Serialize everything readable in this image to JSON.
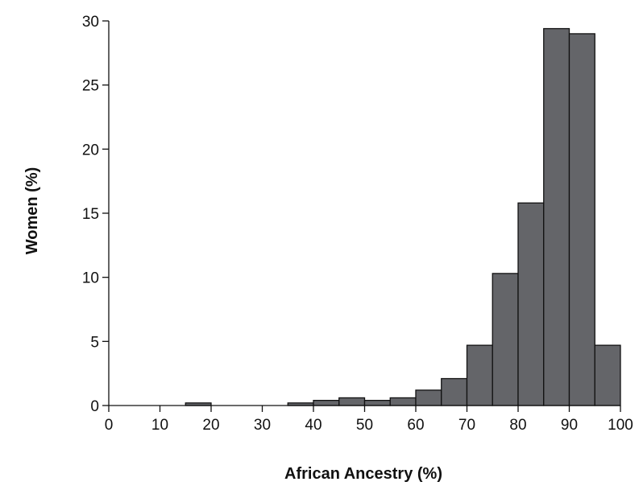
{
  "chart_data": {
    "type": "bar",
    "xlabel": "African Ancestry (%)",
    "ylabel": "Women (%)",
    "xlim": [
      0,
      100
    ],
    "ylim": [
      0,
      30
    ],
    "xticks": [
      0,
      10,
      20,
      30,
      40,
      50,
      60,
      70,
      80,
      90,
      100
    ],
    "yticks": [
      0,
      5,
      10,
      15,
      20,
      25,
      30
    ],
    "bin_width": 5,
    "bins": [
      {
        "start": 0,
        "end": 5,
        "value": 0
      },
      {
        "start": 5,
        "end": 10,
        "value": 0
      },
      {
        "start": 10,
        "end": 15,
        "value": 0
      },
      {
        "start": 15,
        "end": 20,
        "value": 0.2
      },
      {
        "start": 20,
        "end": 25,
        "value": 0
      },
      {
        "start": 25,
        "end": 30,
        "value": 0
      },
      {
        "start": 30,
        "end": 35,
        "value": 0
      },
      {
        "start": 35,
        "end": 40,
        "value": 0.2
      },
      {
        "start": 40,
        "end": 45,
        "value": 0.4
      },
      {
        "start": 45,
        "end": 50,
        "value": 0.6
      },
      {
        "start": 50,
        "end": 55,
        "value": 0.4
      },
      {
        "start": 55,
        "end": 60,
        "value": 0.6
      },
      {
        "start": 60,
        "end": 65,
        "value": 1.2
      },
      {
        "start": 65,
        "end": 70,
        "value": 2.1
      },
      {
        "start": 70,
        "end": 75,
        "value": 4.7
      },
      {
        "start": 75,
        "end": 80,
        "value": 10.3
      },
      {
        "start": 80,
        "end": 85,
        "value": 15.8
      },
      {
        "start": 85,
        "end": 90,
        "value": 29.4
      },
      {
        "start": 90,
        "end": 95,
        "value": 29.0
      },
      {
        "start": 95,
        "end": 100,
        "value": 4.7
      }
    ],
    "grid": false,
    "legend": "none",
    "colors": {
      "bar_fill": "#646569",
      "bar_stroke": "#111111",
      "axis": "#111111"
    }
  }
}
